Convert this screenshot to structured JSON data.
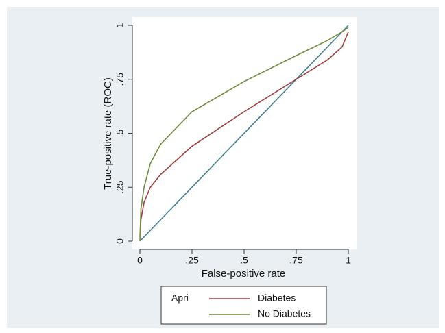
{
  "chart_data": {
    "type": "line",
    "xlabel": "False-positive rate",
    "ylabel": "True-positive rate (ROC)",
    "x": [
      0,
      0.005,
      0.02,
      0.05,
      0.1,
      0.25,
      0.5,
      0.75,
      0.9,
      0.97,
      1
    ],
    "series": [
      {
        "name": "Diabetes",
        "color": "#a23b3e",
        "values": [
          0.02,
          0.1,
          0.18,
          0.25,
          0.31,
          0.44,
          0.6,
          0.75,
          0.84,
          0.9,
          0.97
        ]
      },
      {
        "name": "No Diabetes",
        "color": "#6e8b3d",
        "values": [
          0,
          0.15,
          0.25,
          0.36,
          0.45,
          0.6,
          0.74,
          0.86,
          0.93,
          0.97,
          0.99
        ]
      }
    ],
    "reference_line": {
      "x": [
        0,
        1
      ],
      "values": [
        0,
        1
      ],
      "color": "#3f7f8c"
    },
    "legend_title": "Apri",
    "xlim": [
      0,
      1
    ],
    "ylim": [
      0,
      1
    ],
    "xticks": [
      0,
      {
        "value": 0.25,
        "label": ".25"
      },
      {
        "value": 0.5,
        "label": ".5"
      },
      {
        "value": 0.75,
        "label": ".75"
      },
      1
    ],
    "yticks": [
      0,
      {
        "value": 0.25,
        "label": ".25"
      },
      {
        "value": 0.5,
        "label": ".5"
      },
      {
        "value": 0.75,
        "label": ".75"
      },
      1
    ]
  }
}
